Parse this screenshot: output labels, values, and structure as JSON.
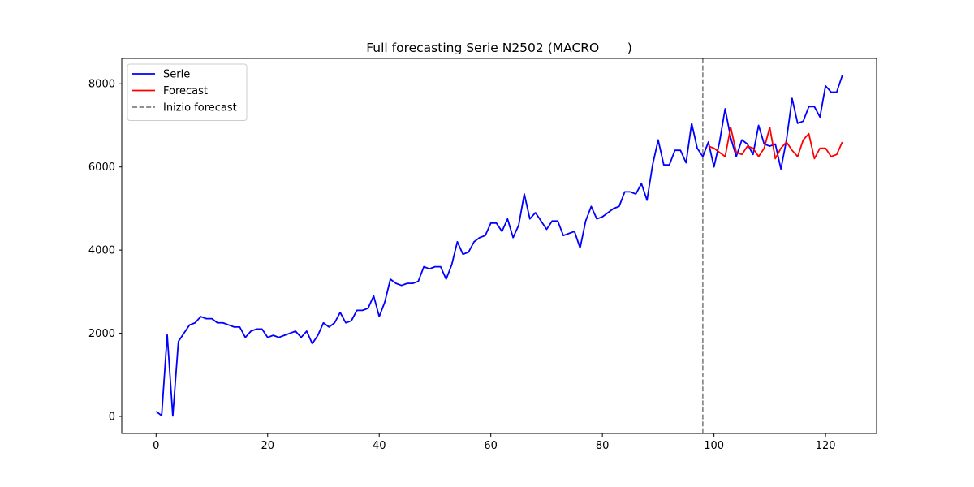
{
  "chart_data": {
    "type": "line",
    "title": "Full forecasting Serie N2502 (MACRO       )",
    "xlabel": "",
    "ylabel": "",
    "xlim": [
      -6.15,
      129.15
    ],
    "ylim": [
      -410,
      8610
    ],
    "x_ticks": [
      0,
      20,
      40,
      60,
      80,
      100,
      120
    ],
    "y_ticks": [
      0,
      2000,
      4000,
      6000,
      8000
    ],
    "x_tick_labels": [
      "0",
      "20",
      "40",
      "60",
      "80",
      "100",
      "120"
    ],
    "y_tick_labels": [
      "0",
      "2000",
      "4000",
      "6000",
      "8000"
    ],
    "legend_position": "upper-left",
    "grid": false,
    "series": [
      {
        "name": "Serie",
        "color": "#0000ff",
        "style": "solid",
        "x_start": 0,
        "values": [
          120,
          20,
          1960,
          10,
          1800,
          2000,
          2200,
          2250,
          2400,
          2350,
          2350,
          2250,
          2250,
          2200,
          2150,
          2150,
          1900,
          2050,
          2100,
          2100,
          1900,
          1950,
          1900,
          1950,
          2000,
          2050,
          1900,
          2050,
          1750,
          1950,
          2250,
          2150,
          2250,
          2500,
          2250,
          2300,
          2550,
          2550,
          2600,
          2900,
          2400,
          2750,
          3300,
          3200,
          3150,
          3200,
          3200,
          3250,
          3600,
          3550,
          3600,
          3600,
          3300,
          3650,
          4200,
          3900,
          3950,
          4200,
          4300,
          4350,
          4650,
          4650,
          4450,
          4750,
          4300,
          4600,
          5350,
          4750,
          4900,
          4700,
          4500,
          4700,
          4700,
          4350,
          4400,
          4450,
          4050,
          4700,
          5050,
          4750,
          4800,
          4900,
          5000,
          5050,
          5400,
          5400,
          5350,
          5600,
          5200,
          6050,
          6650,
          6050,
          6050,
          6400,
          6400,
          6100,
          7050,
          6450,
          6250,
          6600,
          6000,
          6600,
          7400,
          6700,
          6250,
          6650,
          6550,
          6300,
          7000,
          6550,
          6500,
          6550,
          5950,
          6650,
          7650,
          7050,
          7100,
          7450,
          7450,
          7200,
          7950,
          7800,
          7800,
          8200
        ]
      },
      {
        "name": "Forecast",
        "color": "#ff0000",
        "style": "solid",
        "x_start": 99,
        "values": [
          6500,
          6450,
          6350,
          6250,
          6950,
          6350,
          6300,
          6500,
          6450,
          6250,
          6450,
          6950,
          6200,
          6450,
          6600,
          6400,
          6250,
          6650,
          6800,
          6200,
          6450,
          6450,
          6250,
          6300,
          6600
        ]
      }
    ],
    "vlines": [
      {
        "name": "Inizio forecast",
        "x": 98,
        "color": "#808080",
        "style": "dashed"
      }
    ]
  }
}
